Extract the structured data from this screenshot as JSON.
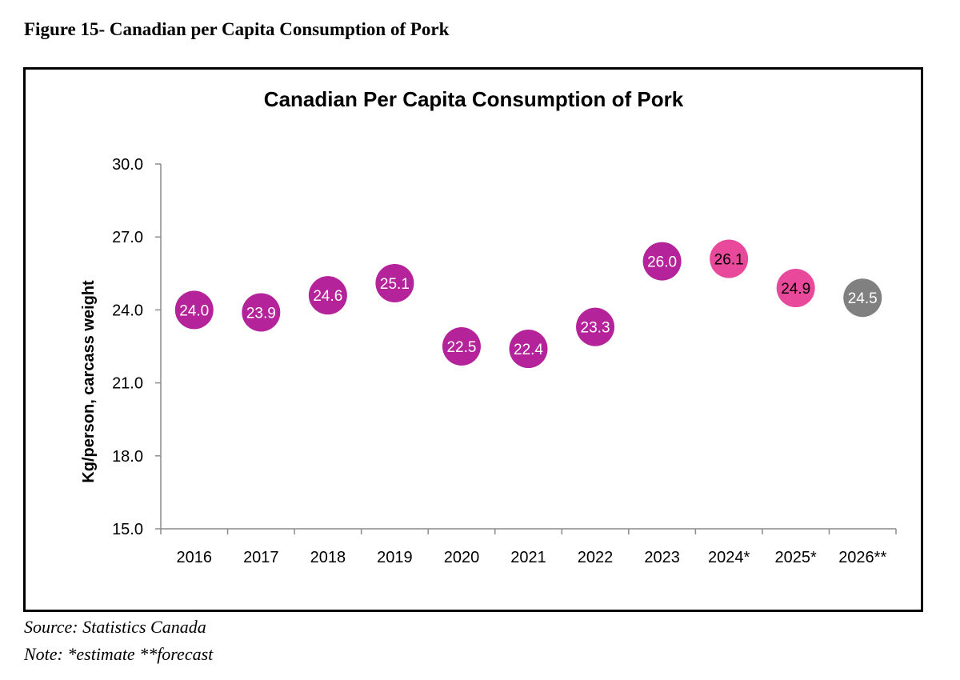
{
  "figure_caption": "Figure 15- Canadian per Capita Consumption of Pork",
  "source": "Source: Statistics Canada",
  "note": "Note: *estimate **forecast",
  "colors": {
    "actual": "#b5239b",
    "estimate": "#e8499a",
    "forecast": "#808080",
    "label_light": "#ffffff",
    "label_dark": "#000000"
  },
  "chart_data": {
    "type": "scatter",
    "title": "Canadian Per Capita Consumption of Pork",
    "xlabel": "",
    "ylabel": "Kg/person, carcass weight",
    "ylim": [
      15.0,
      30.0
    ],
    "yticks": [
      "15.0",
      "18.0",
      "21.0",
      "24.0",
      "27.0",
      "30.0"
    ],
    "categories": [
      "2016",
      "2017",
      "2018",
      "2019",
      "2020",
      "2021",
      "2022",
      "2023",
      "2024*",
      "2025*",
      "2026**"
    ],
    "values": [
      24.0,
      23.9,
      24.6,
      25.1,
      22.5,
      22.4,
      23.3,
      26.0,
      26.1,
      24.9,
      24.5
    ],
    "labels": [
      "24.0",
      "23.9",
      "24.6",
      "25.1",
      "22.5",
      "22.4",
      "23.3",
      "26.0",
      "26.1",
      "24.9",
      "24.5"
    ],
    "point_kind": [
      "actual",
      "actual",
      "actual",
      "actual",
      "actual",
      "actual",
      "actual",
      "actual",
      "estimate",
      "estimate",
      "forecast"
    ],
    "grid": false,
    "legend": "none"
  }
}
